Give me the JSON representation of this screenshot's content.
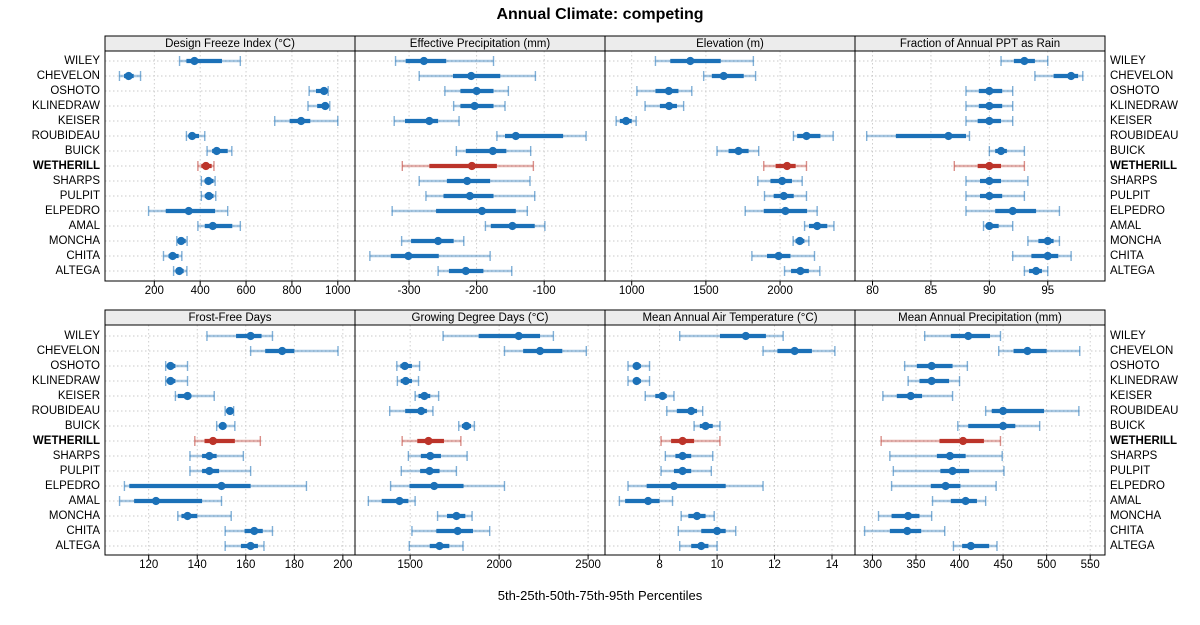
{
  "title": "Annual Climate: competing",
  "caption": "5th-25th-50th-75th-95th Percentiles",
  "colors": {
    "series_blue": "#1c71b8",
    "highlight_red": "#bc342a",
    "strip_background": "#ececec",
    "panel_border": "#000000",
    "gridline": "#c9c9c9"
  },
  "stations": [
    "WILEY",
    "CHEVELON",
    "OSHOTO",
    "KLINEDRAW",
    "KEISER",
    "ROUBIDEAU",
    "BUICK",
    "WETHERILL",
    "SHARPS",
    "PULPIT",
    "ELPEDRO",
    "AMAL",
    "MONCHA",
    "CHITA",
    "ALTEGA"
  ],
  "highlight_station": "WETHERILL",
  "chart_data": {
    "type": "dotplot-percentiles",
    "percentiles": [
      5,
      25,
      50,
      75,
      95
    ],
    "grid": {
      "rows": 2,
      "cols": 4,
      "gridlines": "dotted",
      "legend": "none"
    },
    "panels": [
      {
        "title": "Design Freeze Index (°C)",
        "xlim": [
          -15,
          1075
        ],
        "ticks": [
          200,
          400,
          600,
          800,
          1000
        ],
        "values": [
          [
            310,
            340,
            375,
            495,
            575
          ],
          [
            48,
            68,
            88,
            110,
            140
          ],
          [
            875,
            905,
            940,
            952,
            958
          ],
          [
            870,
            910,
            945,
            955,
            965
          ],
          [
            725,
            790,
            840,
            880,
            1000
          ],
          [
            340,
            350,
            365,
            395,
            420
          ],
          [
            430,
            452,
            472,
            520,
            538
          ],
          [
            390,
            405,
            425,
            450,
            460
          ],
          [
            405,
            420,
            436,
            458,
            465
          ],
          [
            405,
            420,
            438,
            458,
            468
          ],
          [
            175,
            250,
            350,
            465,
            520
          ],
          [
            390,
            420,
            455,
            540,
            575
          ],
          [
            298,
            306,
            317,
            337,
            343
          ],
          [
            240,
            262,
            280,
            306,
            320
          ],
          [
            284,
            294,
            309,
            328,
            342
          ]
        ]
      },
      {
        "title": "Effective Precipitation (mm)",
        "xlim": [
          -380,
          -10
        ],
        "ticks": [
          -300,
          -200,
          -100
        ],
        "values": [
          [
            -320,
            -305,
            -278,
            -245,
            -175
          ],
          [
            -285,
            -235,
            -208,
            -165,
            -113
          ],
          [
            -247,
            -224,
            -200,
            -175,
            -153
          ],
          [
            -234,
            -224,
            -203,
            -175,
            -158
          ],
          [
            -322,
            -306,
            -270,
            -257,
            -226
          ],
          [
            -170,
            -158,
            -142,
            -72,
            -38
          ],
          [
            -230,
            -216,
            -176,
            -156,
            -120
          ],
          [
            -310,
            -270,
            -207,
            -170,
            -116
          ],
          [
            -285,
            -244,
            -214,
            -180,
            -121
          ],
          [
            -275,
            -249,
            -210,
            -175,
            -114
          ],
          [
            -325,
            -260,
            -192,
            -142,
            -125
          ],
          [
            -187,
            -179,
            -147,
            -114,
            -99
          ],
          [
            -311,
            -297,
            -257,
            -234,
            -219
          ],
          [
            -358,
            -327,
            -301,
            -256,
            -180
          ],
          [
            -257,
            -241,
            -216,
            -190,
            -148
          ]
        ]
      },
      {
        "title": "Elevation (m)",
        "xlim": [
          820,
          2505
        ],
        "ticks": [
          1000,
          1500,
          2000
        ],
        "values": [
          [
            1160,
            1260,
            1395,
            1600,
            1820
          ],
          [
            1485,
            1540,
            1620,
            1755,
            1835
          ],
          [
            1035,
            1160,
            1250,
            1315,
            1405
          ],
          [
            1090,
            1190,
            1252,
            1305,
            1350
          ],
          [
            895,
            920,
            962,
            1000,
            1030
          ],
          [
            2090,
            2115,
            2178,
            2272,
            2358
          ],
          [
            1575,
            1653,
            1720,
            1788,
            1856
          ],
          [
            1890,
            1970,
            2047,
            2105,
            2178
          ],
          [
            1850,
            1935,
            2014,
            2080,
            2149
          ],
          [
            1895,
            1957,
            2025,
            2092,
            2178
          ],
          [
            1765,
            1890,
            2036,
            2182,
            2250
          ],
          [
            2165,
            2195,
            2250,
            2318,
            2363
          ],
          [
            2088,
            2104,
            2133,
            2164,
            2194
          ],
          [
            1810,
            1912,
            1990,
            2070,
            2232
          ],
          [
            2030,
            2074,
            2137,
            2194,
            2268
          ]
        ]
      },
      {
        "title": "Fraction of Annual PPT as Rain",
        "xlim": [
          78.5,
          99.9
        ],
        "ticks": [
          80,
          85,
          90,
          95
        ],
        "values": [
          [
            91,
            92.1,
            93,
            93.9,
            95
          ],
          [
            93.9,
            95.5,
            97,
            97.6,
            98
          ],
          [
            88,
            89.1,
            90,
            91.1,
            92
          ],
          [
            88,
            89.1,
            90,
            91.1,
            92
          ],
          [
            88,
            89,
            90,
            91,
            92
          ],
          [
            79.5,
            82,
            86.5,
            88,
            88.3
          ],
          [
            90,
            90.5,
            91,
            91.5,
            93
          ],
          [
            87,
            89,
            90,
            91,
            93
          ],
          [
            88,
            89.2,
            90,
            91,
            93.3
          ],
          [
            88,
            89.2,
            90,
            91.1,
            93
          ],
          [
            88,
            90.5,
            92,
            94,
            96
          ],
          [
            89.5,
            89.7,
            90,
            90.8,
            92
          ],
          [
            93.3,
            94.2,
            95,
            95.5,
            96
          ],
          [
            92,
            93.6,
            95,
            95.9,
            97
          ],
          [
            93,
            93.4,
            94,
            94.5,
            95
          ]
        ]
      },
      {
        "title": "Frost-Free Days",
        "xlim": [
          102,
          205
        ],
        "ticks": [
          120,
          140,
          160,
          180,
          200
        ],
        "values": [
          [
            144,
            156,
            162,
            166.5,
            171
          ],
          [
            162,
            168,
            175,
            180,
            198
          ],
          [
            127,
            128,
            129,
            131,
            136
          ],
          [
            127,
            128,
            129,
            131,
            136
          ],
          [
            131,
            132,
            136,
            137.5,
            147
          ],
          [
            151.5,
            152,
            153.5,
            154.5,
            155
          ],
          [
            148,
            149,
            150.5,
            152,
            155.5
          ],
          [
            139,
            143,
            146.5,
            155.5,
            166
          ],
          [
            137,
            142,
            145,
            148,
            159
          ],
          [
            137,
            142,
            145,
            149,
            162
          ],
          [
            110,
            112,
            150,
            162,
            185
          ],
          [
            108,
            114,
            123,
            142,
            150
          ],
          [
            132,
            133.5,
            136,
            140,
            154
          ],
          [
            151.5,
            159.5,
            163.5,
            167,
            171
          ],
          [
            151.5,
            158,
            162,
            165,
            167.5
          ]
        ]
      },
      {
        "title": "Growing Degree Days (°C)",
        "xlim": [
          1190,
          2595
        ],
        "ticks": [
          1500,
          2000,
          2500
        ],
        "values": [
          [
            1685,
            1885,
            2110,
            2230,
            2305
          ],
          [
            2030,
            2135,
            2230,
            2355,
            2490
          ],
          [
            1425,
            1445,
            1470,
            1510,
            1553
          ],
          [
            1428,
            1447,
            1475,
            1510,
            1547
          ],
          [
            1528,
            1547,
            1580,
            1613,
            1660
          ],
          [
            1385,
            1472,
            1562,
            1594,
            1628
          ],
          [
            1773,
            1791,
            1816,
            1842,
            1861
          ],
          [
            1455,
            1540,
            1603,
            1690,
            1785
          ],
          [
            1490,
            1560,
            1613,
            1673,
            1820
          ],
          [
            1450,
            1556,
            1609,
            1665,
            1760
          ],
          [
            1390,
            1496,
            1635,
            1800,
            2030
          ],
          [
            1265,
            1340,
            1440,
            1490,
            1528
          ],
          [
            1654,
            1707,
            1760,
            1810,
            1848
          ],
          [
            1510,
            1647,
            1767,
            1853,
            1947
          ],
          [
            1495,
            1610,
            1665,
            1720,
            1797
          ]
        ]
      },
      {
        "title": "Mean Annual Air Temperature (°C)",
        "xlim": [
          6.1,
          14.8
        ],
        "ticks": [
          8,
          10,
          12,
          14
        ],
        "values": [
          [
            8.7,
            10.1,
            11.0,
            11.7,
            12.3
          ],
          [
            11.6,
            12.1,
            12.7,
            13.3,
            14.1
          ],
          [
            6.9,
            7.1,
            7.2,
            7.35,
            7.65
          ],
          [
            6.9,
            7.1,
            7.2,
            7.35,
            7.65
          ],
          [
            7.5,
            7.85,
            8.1,
            8.25,
            8.5
          ],
          [
            8.25,
            8.6,
            9.1,
            9.3,
            9.5
          ],
          [
            9.2,
            9.4,
            9.6,
            9.85,
            10.1
          ],
          [
            8.05,
            8.4,
            8.8,
            9.2,
            10.1
          ],
          [
            8.2,
            8.55,
            8.8,
            9.1,
            9.85
          ],
          [
            8.05,
            8.5,
            8.8,
            9.1,
            9.8
          ],
          [
            6.9,
            7.55,
            8.5,
            10.3,
            11.6
          ],
          [
            6.6,
            6.8,
            7.6,
            8.0,
            8.45
          ],
          [
            8.75,
            9.0,
            9.3,
            9.6,
            9.9
          ],
          [
            8.65,
            9.45,
            10.0,
            10.3,
            10.65
          ],
          [
            8.7,
            9.1,
            9.45,
            9.7,
            10.0
          ]
        ]
      },
      {
        "title": "Mean Annual Precipitation (mm)",
        "xlim": [
          280,
          567
        ],
        "ticks": [
          300,
          350,
          400,
          450,
          500,
          550
        ],
        "values": [
          [
            360,
            390,
            410,
            435,
            447
          ],
          [
            445,
            462,
            478,
            500,
            538
          ],
          [
            337,
            351,
            368,
            392,
            409
          ],
          [
            341,
            354,
            368,
            388,
            400
          ],
          [
            312,
            328,
            344,
            357,
            392
          ],
          [
            430,
            437,
            450,
            497,
            537
          ],
          [
            398,
            410,
            450,
            464,
            492
          ],
          [
            310,
            377,
            404,
            428,
            447
          ],
          [
            320,
            374,
            389,
            407,
            449
          ],
          [
            324,
            378,
            392,
            411,
            451
          ],
          [
            322,
            367,
            384,
            401,
            442
          ],
          [
            369,
            390,
            407,
            420,
            430
          ],
          [
            307,
            322,
            341,
            354,
            368
          ],
          [
            291,
            320,
            340,
            356,
            383
          ],
          [
            393,
            403,
            413,
            434,
            443
          ]
        ]
      }
    ]
  }
}
